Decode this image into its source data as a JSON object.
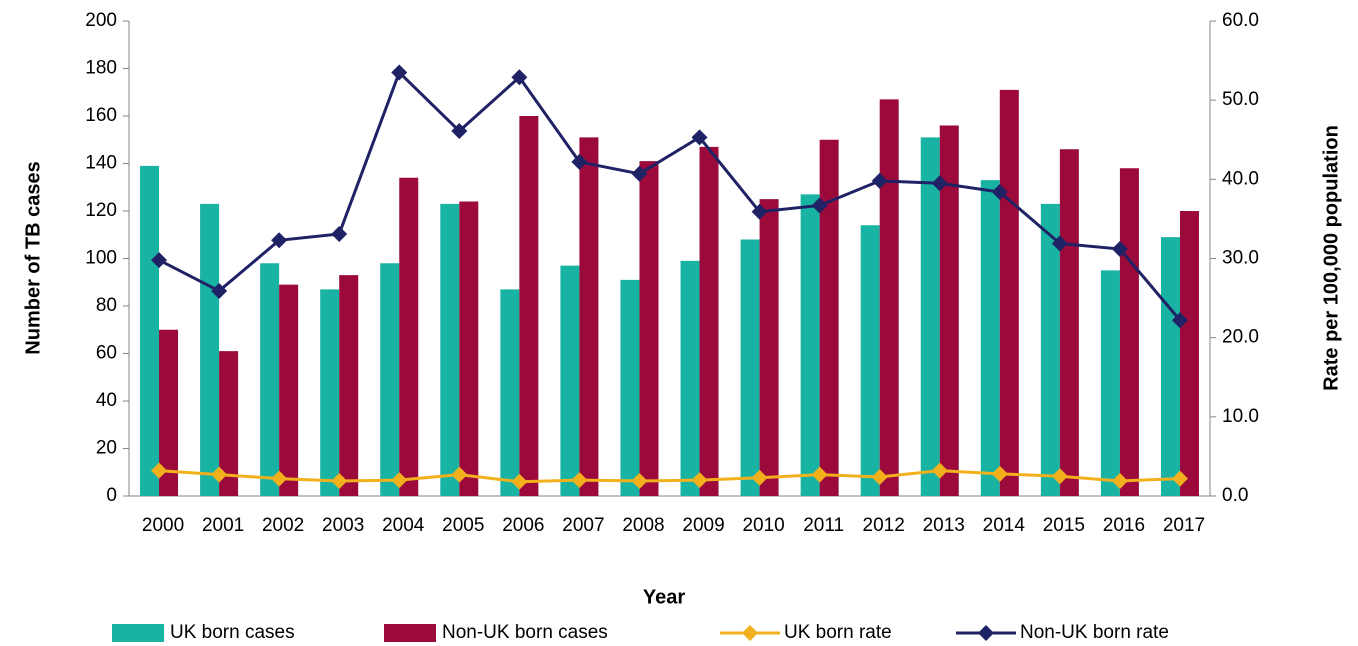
{
  "chart_data": {
    "type": "bar",
    "x_label": "Year",
    "y_label": "Number of TB cases",
    "y2_label": "Rate per 100,000 population",
    "categories": [
      "2000",
      "2001",
      "2002",
      "2003",
      "2004",
      "2005",
      "2006",
      "2007",
      "2008",
      "2009",
      "2010",
      "2011",
      "2012",
      "2013",
      "2014",
      "2015",
      "2016",
      "2017"
    ],
    "series": [
      {
        "name": "UK born cases",
        "type": "bar",
        "color": "#19b3a3",
        "values": [
          139,
          123,
          98,
          87,
          98,
          123,
          87,
          97,
          91,
          99,
          108,
          127,
          114,
          151,
          133,
          123,
          95,
          109
        ]
      },
      {
        "name": "Non-UK born cases",
        "type": "bar",
        "color": "#9b0a3b",
        "values": [
          70,
          61,
          89,
          93,
          134,
          124,
          160,
          151,
          141,
          147,
          125,
          150,
          167,
          156,
          171,
          146,
          138,
          120
        ]
      },
      {
        "name": "UK born rate",
        "type": "line",
        "axis": "y2",
        "color": "#f2b11c",
        "values": [
          3.2,
          2.7,
          2.2,
          1.9,
          2.0,
          2.7,
          1.8,
          2.0,
          1.9,
          2.0,
          2.3,
          2.7,
          2.4,
          3.2,
          2.8,
          2.5,
          1.9,
          2.2
        ]
      },
      {
        "name": "Non-UK born rate",
        "type": "line",
        "axis": "y2",
        "color": "#1f2264",
        "values": [
          29.8,
          25.9,
          32.3,
          33.1,
          53.5,
          46.1,
          52.9,
          42.2,
          40.7,
          45.3,
          35.9,
          36.7,
          39.8,
          39.5,
          38.4,
          31.9,
          31.2,
          22.2
        ]
      }
    ],
    "ylim": [
      0,
      200
    ],
    "yticks": [
      0,
      20,
      40,
      60,
      80,
      100,
      120,
      140,
      160,
      180,
      200
    ],
    "y2lim": [
      0,
      60
    ],
    "y2ticks": [
      {
        "value": 0,
        "label": "0.0"
      },
      {
        "value": 10,
        "label": "10.0"
      },
      {
        "value": 20,
        "label": "20.0"
      },
      {
        "value": 30,
        "label": "30.0"
      },
      {
        "value": 40,
        "label": "40.0"
      },
      {
        "value": 50,
        "label": "50.0"
      },
      {
        "value": 60,
        "label": "60.0"
      }
    ],
    "grid": false,
    "legend": "bottom"
  }
}
